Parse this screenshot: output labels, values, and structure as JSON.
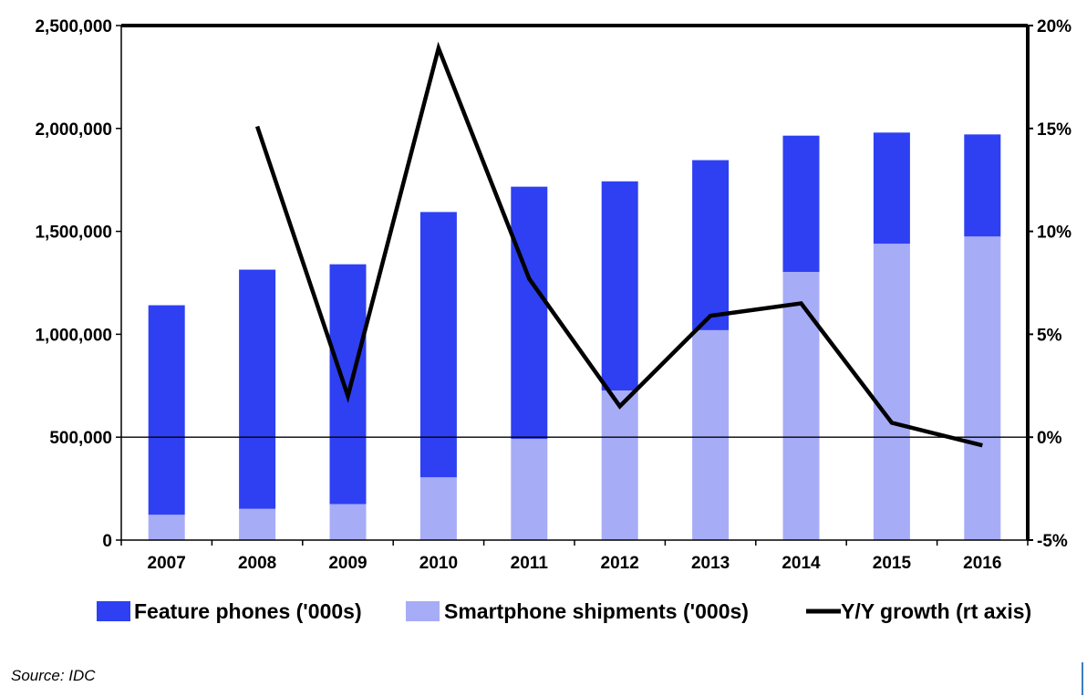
{
  "chart_data": {
    "type": "bar",
    "categories": [
      "2007",
      "2008",
      "2009",
      "2010",
      "2011",
      "2012",
      "2013",
      "2014",
      "2015",
      "2016"
    ],
    "series": [
      {
        "name": "Smartphone shipments ('000s)",
        "kind": "bar-stacked",
        "axis": "left",
        "color": "#a7acf7",
        "values": [
          123000,
          152000,
          175000,
          305000,
          492000,
          727000,
          1020000,
          1303000,
          1440000,
          1475000
        ]
      },
      {
        "name": "Feature phones ('000s)",
        "kind": "bar-stacked",
        "axis": "left",
        "color": "#2e40f2",
        "values": [
          1018000,
          1162000,
          1165000,
          1289000,
          1225000,
          1016000,
          826000,
          662000,
          540000,
          496000
        ]
      },
      {
        "name": "Y/Y growth (rt axis)",
        "kind": "line",
        "axis": "right",
        "color": "#000000",
        "values": [
          null,
          15.1,
          2.0,
          18.9,
          7.7,
          1.5,
          5.9,
          6.5,
          0.7,
          -0.4
        ]
      }
    ],
    "y_left": {
      "min": 0,
      "max": 2500000,
      "ticks": [
        0,
        500000,
        1000000,
        1500000,
        2000000,
        2500000
      ],
      "tick_labels": [
        "0",
        "500,000",
        "1,000,000",
        "1,500,000",
        "2,000,000",
        "2,500,000"
      ]
    },
    "y_right": {
      "min": -5,
      "max": 20,
      "ticks": [
        -5,
        0,
        5,
        10,
        15,
        20
      ],
      "tick_labels": [
        "-5%",
        "0%",
        "5%",
        "10%",
        "15%",
        "20%"
      ]
    },
    "reference_line_right": 0,
    "legend": {
      "position": "bottom",
      "items": [
        "Feature phones ('000s)",
        "Smartphone shipments ('000s)",
        "Y/Y growth (rt axis)"
      ]
    },
    "grid": false,
    "title": "",
    "xlabel": "",
    "ylabel": ""
  },
  "source_text": "Source: IDC"
}
